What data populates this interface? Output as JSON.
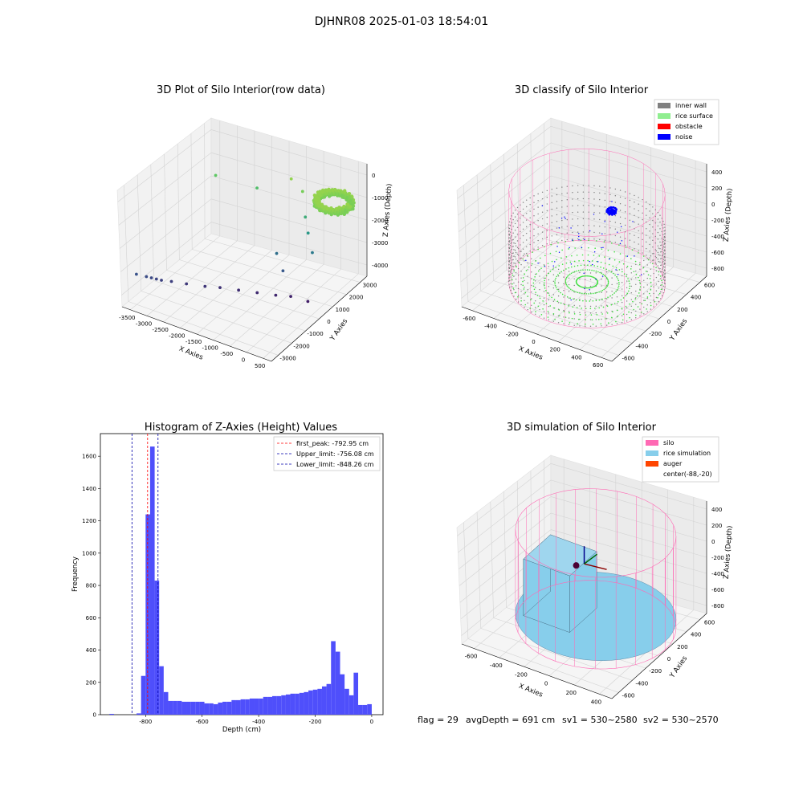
{
  "figure": {
    "suptitle": "DJHNR08 2025-01-03 18:54:01",
    "status": {
      "flag": "flag = 29",
      "avg_depth": "avgDepth = 691 cm",
      "sv1": "sv1 = 530~2580",
      "sv2": "sv2 = 530~2570"
    }
  },
  "colors": {
    "inner_wall": "#808080",
    "rice_surface": "#90ee90",
    "obstacle": "#ff0000",
    "noise": "#0000ff",
    "silo": "#ff69b4",
    "rice_simulation": "#87ceeb",
    "auger": "#ff4500",
    "histogram_bar": "#4f4ffb",
    "first_peak_line": "#ff0000",
    "limit_line": "#0000aa"
  },
  "chart_data": [
    {
      "type": "scatter",
      "projection": "3d",
      "title": "3D Plot of Silo Interior(row data)",
      "xlabel": "X Axies",
      "ylabel": "Y Axies",
      "zlabel": "Z Axies (Depth)",
      "xticks": [
        "-3500",
        "-3000",
        "-2500",
        "-2000",
        "-1500",
        "-1000",
        "-500",
        "0",
        "500"
      ],
      "yticks": [
        "-3000",
        "-2000",
        "-1000",
        "0",
        "1000",
        "2000",
        "3000"
      ],
      "zticks": [
        "-4000",
        "-3000",
        "-2000",
        "-1000",
        "0"
      ],
      "xlim": [
        -3600,
        600
      ],
      "ylim": [
        -3300,
        3300
      ],
      "zlim": [
        -4500,
        200
      ],
      "colormap": "viridis by depth",
      "points": [
        {
          "x": -3400,
          "y": -2800,
          "z": -3300
        },
        {
          "x": -3200,
          "y": -2600,
          "z": -3400
        },
        {
          "x": -3100,
          "y": -2500,
          "z": -3450
        },
        {
          "x": -3000,
          "y": -2400,
          "z": -3500
        },
        {
          "x": -2900,
          "y": -2300,
          "z": -3550
        },
        {
          "x": -2700,
          "y": -2100,
          "z": -3600
        },
        {
          "x": -2400,
          "y": -1800,
          "z": -3700
        },
        {
          "x": -2000,
          "y": -1500,
          "z": -3750
        },
        {
          "x": -1700,
          "y": -1200,
          "z": -3800
        },
        {
          "x": -1300,
          "y": -900,
          "z": -3850
        },
        {
          "x": -900,
          "y": -600,
          "z": -3900
        },
        {
          "x": -500,
          "y": -300,
          "z": -3950
        },
        {
          "x": -200,
          "y": 0,
          "z": -4000
        },
        {
          "x": 200,
          "y": 200,
          "z": -4100
        },
        {
          "x": -2800,
          "y": 1200,
          "z": -1000
        },
        {
          "x": -1800,
          "y": 1600,
          "z": -1200
        },
        {
          "x": -1000,
          "y": 2000,
          "z": -600
        },
        {
          "x": -600,
          "y": 1800,
          "z": -800
        },
        {
          "x": -400,
          "y": 1500,
          "z": -1600
        },
        {
          "x": -200,
          "y": 1200,
          "z": -2000
        },
        {
          "x": 0,
          "y": 1000,
          "z": -2600
        },
        {
          "x": -800,
          "y": 500,
          "z": -2800
        },
        {
          "x": -500,
          "y": 200,
          "z": -3200
        }
      ],
      "cluster": {
        "x_center": 200,
        "y_center": 2000,
        "z_center": -800,
        "x_radius": 500,
        "y_radius": 700
      }
    },
    {
      "type": "scatter",
      "projection": "3d",
      "title": "3D classify of Silo Interior",
      "xlabel": "X Axies",
      "ylabel": "Y Axies",
      "zlabel": "Z Axies (Depth)",
      "xticks": [
        "-600",
        "-400",
        "-200",
        "0",
        "200",
        "400",
        "600"
      ],
      "yticks": [
        "-600",
        "-400",
        "-200",
        "0",
        "200",
        "400",
        "600"
      ],
      "zticks": [
        "-800",
        "-600",
        "-400",
        "-200",
        "0",
        "200",
        "400"
      ],
      "xlim": [
        -700,
        650
      ],
      "ylim": [
        -700,
        700
      ],
      "zlim": [
        -900,
        450
      ],
      "legend": {
        "position": "upper right",
        "items": [
          "inner wall",
          "rice surface",
          "obstacle",
          "noise"
        ]
      },
      "silo": {
        "radius": 600,
        "z_bottom": -800,
        "z_top": 300
      },
      "noise_cluster": {
        "x": 100,
        "y": 200,
        "z": 0
      }
    },
    {
      "type": "bar",
      "title": "Histogram of Z-Axies (Height) Values",
      "xlabel": "Depth (cm)",
      "ylabel": "Frequency",
      "xticks": [
        "-800",
        "-600",
        "-400",
        "-200",
        "0"
      ],
      "yticks": [
        "0",
        "200",
        "400",
        "600",
        "800",
        "1000",
        "1200",
        "1400",
        "1600"
      ],
      "xlim": [
        -960,
        40
      ],
      "ylim": [
        0,
        1740
      ],
      "bin_width": 16,
      "bins_start": [
        -928,
        -832,
        -816,
        -800,
        -784,
        -768,
        -752,
        -736,
        -720,
        -704,
        -688,
        -672,
        -656,
        -640,
        -624,
        -608,
        -592,
        -576,
        -560,
        -544,
        -528,
        -512,
        -496,
        -480,
        -464,
        -448,
        -432,
        -416,
        -400,
        -384,
        -368,
        -352,
        -336,
        -320,
        -304,
        -288,
        -272,
        -256,
        -240,
        -224,
        -208,
        -192,
        -176,
        -160,
        -144,
        -128,
        -112,
        -96,
        -80,
        -64,
        -48,
        -32,
        -16
      ],
      "values": [
        5,
        8,
        240,
        1240,
        1660,
        830,
        300,
        140,
        85,
        85,
        85,
        80,
        80,
        80,
        80,
        80,
        70,
        70,
        65,
        75,
        80,
        80,
        90,
        90,
        95,
        95,
        100,
        100,
        100,
        110,
        110,
        115,
        115,
        120,
        125,
        130,
        130,
        135,
        140,
        150,
        155,
        160,
        175,
        190,
        455,
        390,
        250,
        160,
        120,
        260,
        60,
        60,
        65
      ],
      "vlines": [
        {
          "x": -792.95,
          "color": "red",
          "label": "first_peak: -792.95 cm"
        },
        {
          "x": -756.08,
          "color": "blue",
          "label": "Upper_limit: -756.08 cm"
        },
        {
          "x": -848.26,
          "color": "blue",
          "label": "Lower_limit: -848.26 cm"
        }
      ],
      "legend": {
        "position": "upper right"
      }
    },
    {
      "type": "surface",
      "projection": "3d",
      "title": "3D simulation of Silo Interior",
      "xlabel": "X Axies",
      "ylabel": "Y Axies",
      "zlabel": "Z Axies (Depth)",
      "xticks": [
        "-600",
        "-400",
        "-200",
        "0",
        "200",
        "400"
      ],
      "yticks": [
        "-600",
        "-400",
        "-200",
        "0",
        "200",
        "400",
        "600"
      ],
      "zticks": [
        "-800",
        "-600",
        "-400",
        "-200",
        "0",
        "200",
        "400"
      ],
      "legend": {
        "position": "upper right",
        "items": [
          "silo",
          "rice simulation",
          "auger",
          "center(-88,-20)"
        ]
      },
      "silo": {
        "radius": 600,
        "z_bottom": -800,
        "z_top": 300
      },
      "rice_floor_depth": -700,
      "rice_block": {
        "x_range": [
          -450,
          -50
        ],
        "y_range": [
          -300,
          100
        ],
        "z_top": -20
      },
      "center": {
        "x": -88,
        "y": -20
      }
    }
  ]
}
